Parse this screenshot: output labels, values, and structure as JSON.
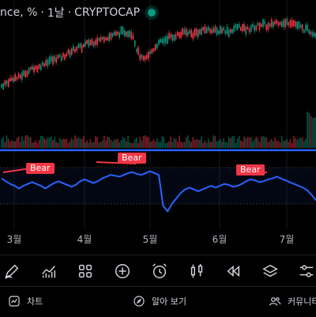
{
  "header": {
    "symbol_fragment": "nce",
    "unit": "%",
    "interval": "1날",
    "exchange": "CRYPTOCAP",
    "live_color": "#089981"
  },
  "indicator": {
    "signal_label": "Bear",
    "signal_color": "#f23645",
    "line_color": "#2962ff"
  },
  "chart_data": {
    "type": "candlestick",
    "title": "",
    "x_ticks": [
      "3월",
      "4월",
      "5월",
      "6월",
      "7월"
    ],
    "up_color": "#089981",
    "down_color": "#f23645",
    "price_trend": [
      2,
      3,
      4,
      5,
      5,
      6,
      7,
      8,
      9,
      9,
      10,
      11,
      12,
      12,
      13,
      13,
      14,
      15,
      16,
      17,
      17,
      18,
      19,
      19,
      20,
      20,
      21,
      21,
      22,
      22,
      23,
      23,
      23,
      22,
      16,
      13,
      12,
      14,
      16,
      18,
      19,
      20,
      21,
      21,
      22,
      22,
      23,
      23,
      22,
      23,
      23,
      24,
      24,
      24,
      23,
      24,
      24,
      23,
      24,
      25,
      25,
      24,
      24,
      25,
      25,
      26,
      26,
      25,
      26,
      27,
      27,
      26,
      27,
      27,
      26,
      25,
      24,
      24,
      23,
      22
    ],
    "rsi": [
      58,
      55,
      52,
      50,
      47,
      50,
      52,
      54,
      52,
      50,
      47,
      50,
      53,
      55,
      53,
      51,
      49,
      51,
      55,
      57,
      55,
      53,
      55,
      58,
      60,
      62,
      61,
      60,
      62,
      64,
      65,
      63,
      62,
      64,
      66,
      64,
      62,
      28,
      22,
      30,
      36,
      42,
      46,
      48,
      46,
      44,
      46,
      48,
      50,
      48,
      50,
      52,
      51,
      49,
      50,
      52,
      55,
      57,
      56,
      54,
      55,
      57,
      58,
      60,
      58,
      56,
      54,
      52,
      50,
      48,
      45,
      40,
      34
    ],
    "bear_signals": [
      "Bear",
      "Bear",
      "Bear"
    ]
  },
  "month_labels": [
    "3월",
    "4월",
    "5월",
    "6월",
    "7월"
  ],
  "toolbar": {
    "icons": [
      "pencil-icon",
      "chart-indicator-icon",
      "grid-icon",
      "plus-circle-icon",
      "alarm-icon",
      "candles-icon",
      "rewind-icon",
      "layers-icon",
      "sliders-icon"
    ]
  },
  "bottom_nav": {
    "chart_label": "차트",
    "explore_label": "알아 보기",
    "community_label": "커뮤니티"
  }
}
